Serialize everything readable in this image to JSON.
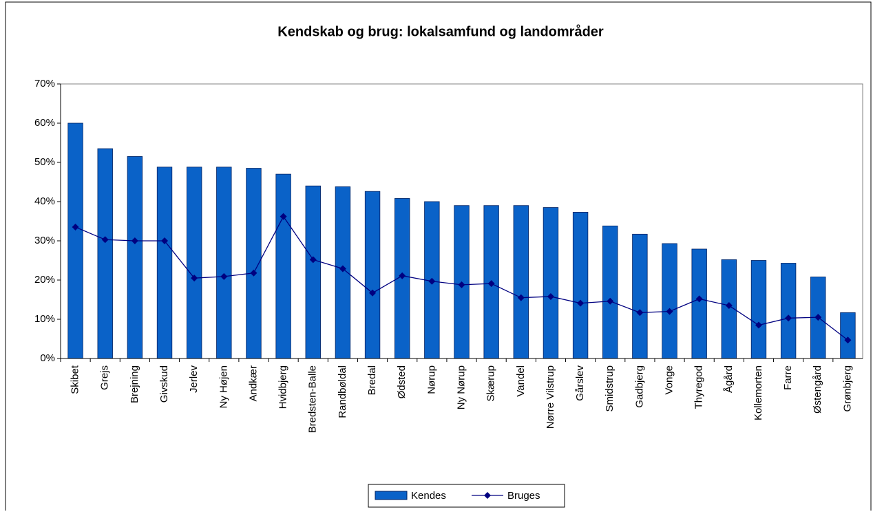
{
  "chart_data": {
    "type": "bar_line",
    "title": "Kendskab og brug: lokalsamfund og landområder",
    "categories": [
      "Skibet",
      "Grejs",
      "Brejning",
      "Givskud",
      "Jerlev",
      "Ny Højen",
      "Andkær",
      "Hvidbjerg",
      "Bredsten-Balle",
      "Randbøldal",
      "Bredal",
      "Ødsted",
      "Nørup",
      "Ny Nørup",
      "Skærup",
      "Vandel",
      "Nørre Vilstrup",
      "Gårslev",
      "Smidstrup",
      "Gadbjerg",
      "Vonge",
      "Thyregod",
      "Ågård",
      "Kollemorten",
      "Farre",
      "Østengård",
      "Grønbjerg"
    ],
    "series": [
      {
        "name": "Kendes",
        "type": "bar",
        "color": "#0a62c8",
        "values": [
          60,
          53.5,
          51.5,
          48.8,
          48.8,
          48.8,
          48.5,
          47,
          44,
          43.8,
          42.6,
          40.8,
          40,
          39,
          39,
          39,
          38.5,
          37.3,
          33.8,
          31.7,
          29.3,
          27.9,
          25.2,
          25,
          24.3,
          20.8,
          11.7
        ]
      },
      {
        "name": "Bruges",
        "type": "line",
        "color": "#000080",
        "values": [
          33.5,
          30.3,
          30,
          30,
          20.5,
          20.9,
          21.8,
          36.2,
          25.2,
          22.9,
          16.7,
          21.1,
          19.7,
          18.8,
          19.1,
          15.5,
          15.8,
          14.1,
          14.6,
          11.7,
          12,
          15.2,
          13.5,
          8.5,
          10.3,
          10.5,
          4.7
        ]
      }
    ],
    "ylim": [
      0,
      70
    ],
    "yticks": [
      {
        "value": 0,
        "label": "0%"
      },
      {
        "value": 10,
        "label": "10%"
      },
      {
        "value": 20,
        "label": "20%"
      },
      {
        "value": 30,
        "label": "30%"
      },
      {
        "value": 40,
        "label": "40%"
      },
      {
        "value": 50,
        "label": "50%"
      },
      {
        "value": 60,
        "label": "60%"
      },
      {
        "value": 70,
        "label": "70%"
      }
    ],
    "legend": "bottom"
  }
}
